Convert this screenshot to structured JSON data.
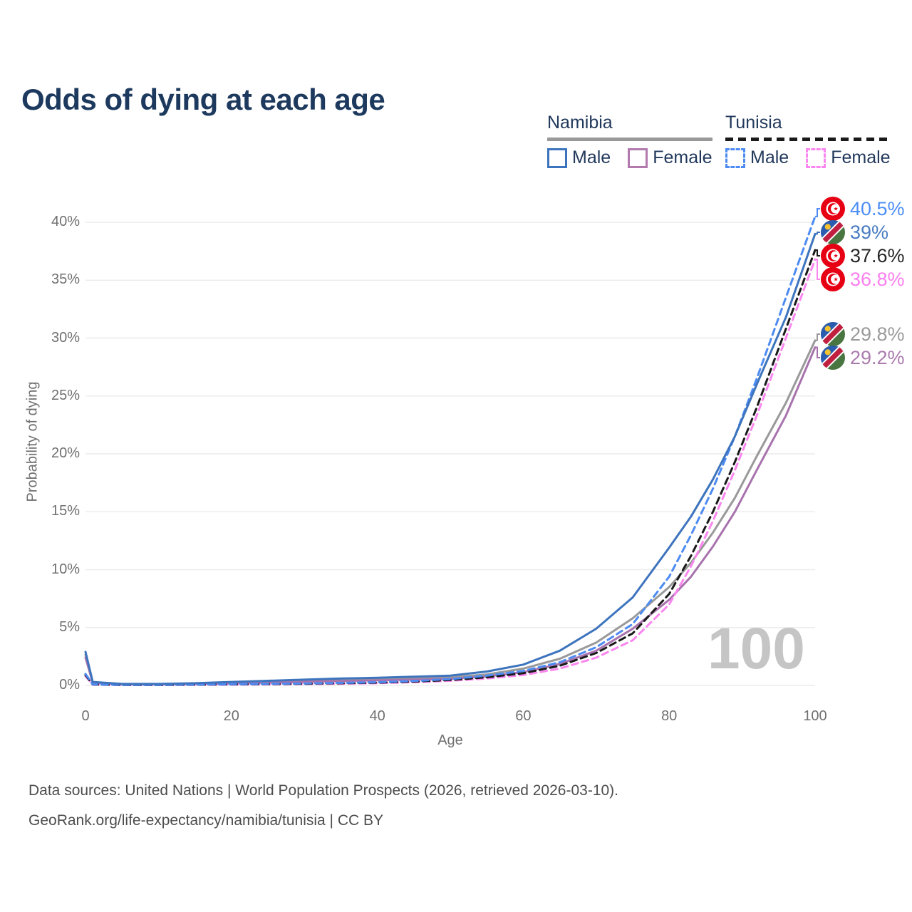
{
  "title": "Odds of dying at each age",
  "watermark": "100",
  "legend": {
    "groups": [
      {
        "country": "Namibia",
        "line_style": "solid",
        "underline_color": "#999999",
        "items": [
          {
            "label": "Male",
            "color": "#3d74bd",
            "dashed": false
          },
          {
            "label": "Female",
            "color": "#b279ae",
            "dashed": false
          }
        ]
      },
      {
        "country": "Tunisia",
        "line_style": "dashed",
        "underline_color": "#1a1a1a",
        "items": [
          {
            "label": "Male",
            "color": "#4d8bf2",
            "dashed": true
          },
          {
            "label": "Female",
            "color": "#fa86ef",
            "dashed": true
          }
        ]
      }
    ]
  },
  "chart_data": {
    "type": "line",
    "title": "Odds of dying at each age",
    "xlabel": "Age",
    "ylabel": "Probability of dying",
    "units": "percent probability of dying at each age",
    "xlim": [
      0,
      100
    ],
    "ylim": [
      0,
      42
    ],
    "x_ticks": [
      {
        "value": 0,
        "label": "0"
      },
      {
        "value": 20,
        "label": "20"
      },
      {
        "value": 40,
        "label": "40"
      },
      {
        "value": 60,
        "label": "60"
      },
      {
        "value": 80,
        "label": "80"
      },
      {
        "value": 100,
        "label": "100"
      }
    ],
    "y_ticks": [
      {
        "value": 0,
        "label": "0%"
      },
      {
        "value": 5,
        "label": "5%"
      },
      {
        "value": 10,
        "label": "10%"
      },
      {
        "value": 15,
        "label": "15%"
      },
      {
        "value": 20,
        "label": "20%"
      },
      {
        "value": 25,
        "label": "25%"
      },
      {
        "value": 30,
        "label": "30%"
      },
      {
        "value": 35,
        "label": "35%"
      },
      {
        "value": 40,
        "label": "40%"
      }
    ],
    "grid": "horizontal",
    "legend_position": "top-right",
    "series": [
      {
        "id": "tunisia-male",
        "name": "Tunisia Male",
        "country": "Tunisia",
        "sex": "male",
        "color": "#4d8bf2",
        "label_color": "#4d8ef5",
        "dash": "dashed",
        "flag": "tunisia",
        "end_label": "40.5%",
        "points": [
          [
            0,
            1.0
          ],
          [
            1,
            0.09
          ],
          [
            5,
            0.045
          ],
          [
            10,
            0.05
          ],
          [
            15,
            0.07
          ],
          [
            20,
            0.11
          ],
          [
            25,
            0.14
          ],
          [
            30,
            0.17
          ],
          [
            35,
            0.22
          ],
          [
            40,
            0.28
          ],
          [
            45,
            0.38
          ],
          [
            50,
            0.55
          ],
          [
            55,
            0.85
          ],
          [
            60,
            1.25
          ],
          [
            65,
            2.0
          ],
          [
            70,
            3.3
          ],
          [
            75,
            5.3
          ],
          [
            80,
            9.4
          ],
          [
            83,
            13.0
          ],
          [
            86,
            17.0
          ],
          [
            89,
            21.5
          ],
          [
            92,
            26.5
          ],
          [
            96,
            33.5
          ],
          [
            100,
            40.5
          ]
        ]
      },
      {
        "id": "namibia-male",
        "name": "Namibia Male",
        "country": "Namibia",
        "sex": "male",
        "color": "#3d74bd",
        "label_color": "#4a7cc2",
        "dash": "solid",
        "flag": "namibia",
        "end_label": "39%",
        "points": [
          [
            0,
            2.9
          ],
          [
            1,
            0.3
          ],
          [
            5,
            0.13
          ],
          [
            10,
            0.13
          ],
          [
            15,
            0.19
          ],
          [
            20,
            0.3
          ],
          [
            25,
            0.4
          ],
          [
            30,
            0.5
          ],
          [
            35,
            0.6
          ],
          [
            40,
            0.66
          ],
          [
            45,
            0.75
          ],
          [
            50,
            0.85
          ],
          [
            55,
            1.2
          ],
          [
            60,
            1.8
          ],
          [
            65,
            3.0
          ],
          [
            70,
            4.9
          ],
          [
            75,
            7.6
          ],
          [
            80,
            11.9
          ],
          [
            83,
            14.6
          ],
          [
            86,
            17.8
          ],
          [
            89,
            21.5
          ],
          [
            92,
            26.0
          ],
          [
            96,
            31.8
          ],
          [
            100,
            39.0
          ]
        ]
      },
      {
        "id": "tunisia-all",
        "name": "Tunisia Both sexes",
        "country": "Tunisia",
        "sex": "both",
        "color": "#1a1a1a",
        "label_color": "#262626",
        "dash": "dashed",
        "flag": "tunisia",
        "end_label": "37.6%",
        "points": [
          [
            0,
            0.9
          ],
          [
            1,
            0.08
          ],
          [
            5,
            0.04
          ],
          [
            10,
            0.04
          ],
          [
            15,
            0.06
          ],
          [
            20,
            0.09
          ],
          [
            25,
            0.12
          ],
          [
            30,
            0.15
          ],
          [
            35,
            0.19
          ],
          [
            40,
            0.24
          ],
          [
            45,
            0.33
          ],
          [
            50,
            0.47
          ],
          [
            55,
            0.7
          ],
          [
            60,
            1.05
          ],
          [
            65,
            1.7
          ],
          [
            70,
            2.8
          ],
          [
            75,
            4.5
          ],
          [
            80,
            7.9
          ],
          [
            83,
            11.2
          ],
          [
            86,
            15.0
          ],
          [
            89,
            19.3
          ],
          [
            92,
            24.0
          ],
          [
            96,
            30.8
          ],
          [
            100,
            37.6
          ]
        ]
      },
      {
        "id": "tunisia-female",
        "name": "Tunisia Female",
        "country": "Tunisia",
        "sex": "female",
        "color": "#fa86ef",
        "label_color": "#fb7ff0",
        "dash": "dashed",
        "flag": "tunisia",
        "end_label": "36.8%",
        "points": [
          [
            0,
            0.8
          ],
          [
            1,
            0.07
          ],
          [
            5,
            0.035
          ],
          [
            10,
            0.035
          ],
          [
            15,
            0.05
          ],
          [
            20,
            0.07
          ],
          [
            25,
            0.09
          ],
          [
            30,
            0.12
          ],
          [
            35,
            0.15
          ],
          [
            40,
            0.2
          ],
          [
            45,
            0.28
          ],
          [
            50,
            0.4
          ],
          [
            55,
            0.6
          ],
          [
            60,
            0.9
          ],
          [
            65,
            1.45
          ],
          [
            70,
            2.4
          ],
          [
            75,
            3.9
          ],
          [
            80,
            7.0
          ],
          [
            83,
            10.3
          ],
          [
            86,
            14.2
          ],
          [
            89,
            18.6
          ],
          [
            92,
            23.3
          ],
          [
            96,
            30.0
          ],
          [
            100,
            36.8
          ]
        ]
      },
      {
        "id": "namibia-all",
        "name": "Namibia Both sexes",
        "country": "Namibia",
        "sex": "both",
        "color": "#999999",
        "label_color": "#9b9b9b",
        "dash": "solid",
        "flag": "namibia",
        "end_label": "29.8%",
        "points": [
          [
            0,
            2.65
          ],
          [
            1,
            0.27
          ],
          [
            5,
            0.12
          ],
          [
            10,
            0.12
          ],
          [
            15,
            0.16
          ],
          [
            20,
            0.24
          ],
          [
            25,
            0.32
          ],
          [
            30,
            0.4
          ],
          [
            35,
            0.47
          ],
          [
            40,
            0.53
          ],
          [
            45,
            0.6
          ],
          [
            50,
            0.7
          ],
          [
            55,
            0.95
          ],
          [
            60,
            1.45
          ],
          [
            65,
            2.3
          ],
          [
            70,
            3.7
          ],
          [
            75,
            5.8
          ],
          [
            80,
            8.5
          ],
          [
            83,
            10.6
          ],
          [
            86,
            13.2
          ],
          [
            89,
            16.2
          ],
          [
            92,
            19.8
          ],
          [
            96,
            24.4
          ],
          [
            100,
            29.8
          ]
        ]
      },
      {
        "id": "namibia-female",
        "name": "Namibia Female",
        "country": "Namibia",
        "sex": "female",
        "color": "#a873ad",
        "label_color": "#aa7bad",
        "dash": "solid",
        "flag": "namibia",
        "end_label": "29.2%",
        "points": [
          [
            0,
            2.4
          ],
          [
            1,
            0.24
          ],
          [
            5,
            0.11
          ],
          [
            10,
            0.11
          ],
          [
            15,
            0.13
          ],
          [
            20,
            0.18
          ],
          [
            25,
            0.24
          ],
          [
            30,
            0.31
          ],
          [
            35,
            0.38
          ],
          [
            40,
            0.44
          ],
          [
            45,
            0.5
          ],
          [
            50,
            0.58
          ],
          [
            55,
            0.78
          ],
          [
            60,
            1.15
          ],
          [
            65,
            1.85
          ],
          [
            70,
            3.0
          ],
          [
            75,
            4.9
          ],
          [
            80,
            7.4
          ],
          [
            83,
            9.4
          ],
          [
            86,
            12.0
          ],
          [
            89,
            15.0
          ],
          [
            92,
            18.6
          ],
          [
            96,
            23.3
          ],
          [
            100,
            29.2
          ]
        ]
      }
    ]
  },
  "footer": {
    "line1": "Data sources: United Nations | World Population Prospects (2026, retrieved 2026-03-10).",
    "line2": "GeoRank.org/life-expectancy/namibia/tunisia | CC BY"
  }
}
